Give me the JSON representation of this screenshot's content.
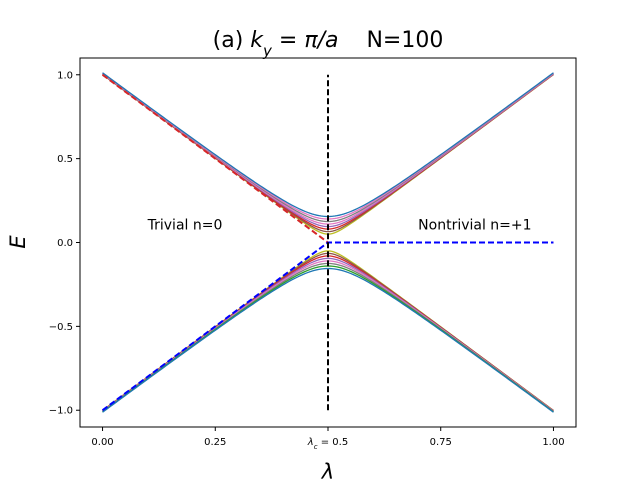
{
  "chart_data": {
    "type": "line",
    "title": "(a) k_y = π/a    N=100",
    "title_parts": {
      "prefix": "(a) ",
      "k_letter": "k",
      "k_subscript": "y",
      "equals": " = ",
      "pi_over_a": "π/a",
      "n_label": "N=100"
    },
    "xlabel": "λ",
    "ylabel": "E",
    "xlim": [
      -0.05,
      1.05
    ],
    "ylim": [
      -1.1,
      1.1
    ],
    "x_ticks": [
      {
        "value": 0.0,
        "label": "0.00"
      },
      {
        "value": 0.25,
        "label": "0.25"
      },
      {
        "value": 0.5,
        "label": "λc = 0.5",
        "base": "λ",
        "sub": "c",
        "tail": " = 0.5"
      },
      {
        "value": 0.75,
        "label": "0.75"
      },
      {
        "value": 1.0,
        "label": "1.00"
      }
    ],
    "y_ticks": [
      {
        "value": -1.0,
        "label": "−1.0"
      },
      {
        "value": -0.5,
        "label": "−0.5"
      },
      {
        "value": 0.0,
        "label": "0.0"
      },
      {
        "value": 0.5,
        "label": "0.5"
      },
      {
        "value": 1.0,
        "label": "1.0"
      }
    ],
    "critical_line": {
      "x": 0.5,
      "y_range": [
        -1.0,
        1.0
      ],
      "color": "#000000",
      "style": "dashed"
    },
    "bulk_bands": {
      "description": "E = ±sqrt((1-2λ)^2 + gap^2), one band per gap value",
      "gaps": [
        0.05,
        0.065,
        0.08,
        0.095,
        0.11,
        0.125,
        0.14,
        0.155
      ],
      "colors_upper": [
        "#bcbd22",
        "#8c564b",
        "#d62728",
        "#9467bd",
        "#e377c2",
        "#7f7f7f",
        "#e377c2",
        "#1f77b4"
      ],
      "colors_lower": [
        "#bcbd22",
        "#8c564b",
        "#d62728",
        "#9467bd",
        "#e377c2",
        "#7f7f7f",
        "#2ca02c",
        "#1f77b4"
      ]
    },
    "edge_states": [
      {
        "name": "edge-upper-red",
        "color": "#d62728",
        "style": "dashed",
        "points": [
          [
            0.0,
            1.0
          ],
          [
            0.25,
            0.5
          ],
          [
            0.5,
            0.0
          ],
          [
            1.0,
            0.0
          ]
        ]
      },
      {
        "name": "edge-lower-blue",
        "color": "#0000ff",
        "style": "dashed",
        "points": [
          [
            0.0,
            -1.0
          ],
          [
            0.25,
            -0.5
          ],
          [
            0.5,
            0.0
          ],
          [
            1.0,
            0.0
          ]
        ]
      }
    ],
    "annotations": [
      {
        "name": "trivial-label",
        "text": "Trivial n=0",
        "x": 0.1,
        "y": 0.1
      },
      {
        "name": "nontrivial-label",
        "text": "Nontrivial n=+1",
        "x": 0.7,
        "y": 0.1
      }
    ]
  }
}
